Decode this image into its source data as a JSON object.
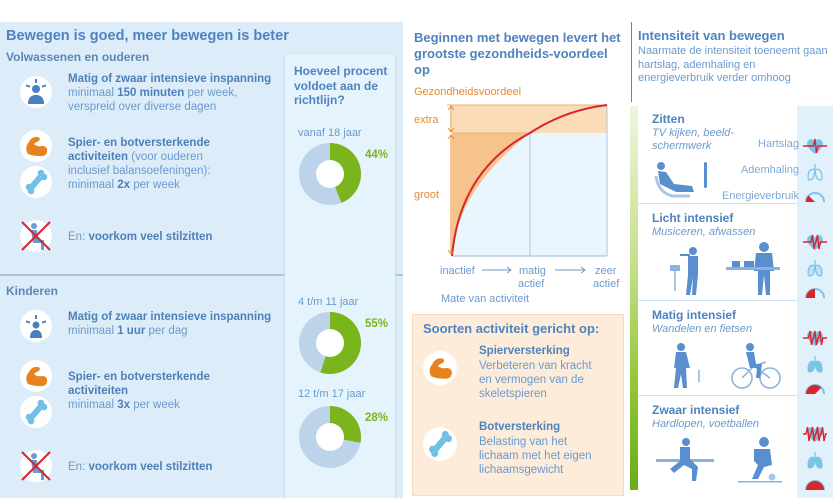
{
  "left": {
    "title": "Bewegen is goed, meer bewegen is beter",
    "adults": {
      "label": "Volwassenen en ouderen",
      "items": [
        {
          "icon": "person-exertion-icon",
          "heading": "Matig of zwaar intensieve inspanning",
          "line1_pre": "minimaal ",
          "line1_bold": "150 minuten",
          "line1_post": " per week,",
          "line2": "verspreid over diverse dagen"
        },
        {
          "icon": "muscle-arm-icon",
          "heading": "Spier- en botversterkende",
          "line1_bold": "activiteiten",
          "line1_post": " (voor ouderen",
          "line2": "inclusief balansoefeningen):",
          "line3_pre": "minimaal ",
          "line3_bold": "2x",
          "line3_post": " per week"
        },
        {
          "icon": "no-sitting-icon",
          "pre": "En: ",
          "bold": "voorkom veel stilzitten"
        }
      ]
    },
    "children": {
      "label": "Kinderen",
      "items": [
        {
          "icon": "person-exertion-icon",
          "heading": "Matig of zwaar intensieve inspanning",
          "line1_pre": "minimaal ",
          "line1_bold": "1 uur",
          "line1_post": " per dag"
        },
        {
          "icon": "muscle-arm-icon",
          "heading": "Spier- en botversterkende",
          "heading2": "activiteiten",
          "line1_pre": "minimaal ",
          "line1_bold": "3x",
          "line1_post": " per week"
        },
        {
          "icon": "no-sitting-icon",
          "pre": "En: ",
          "bold": "voorkom veel stilzitten"
        }
      ]
    }
  },
  "pies": {
    "question": "Hoeveel procent voldoet aan de richtlijn?",
    "items": [
      {
        "label": "vanaf 18 jaar",
        "value": 44,
        "pct_label": "44%"
      },
      {
        "label": "4 t/m 11 jaar",
        "value": 55,
        "pct_label": "55%"
      },
      {
        "label": "12 t/m 17 jaar",
        "value": 28,
        "pct_label": "28%"
      }
    ],
    "colors": {
      "fill": "#7ab51d",
      "rest": "#bcd3ea"
    }
  },
  "middle": {
    "title": "Beginnen met bewegen levert het grootste gezondheids-voordeel op",
    "curve": {
      "ylabel": "Gezondheidsvoordeel",
      "bands": [
        "extra",
        "groot"
      ],
      "xticks": [
        [
          "inactief"
        ],
        [
          "matig",
          "actief"
        ],
        [
          "zeer",
          "actief"
        ]
      ],
      "xlabel": "Mate van activiteit"
    },
    "soorten": {
      "title": "Soorten activiteit gericht op:",
      "items": [
        {
          "icon": "muscle-arm-icon",
          "title": "Spierversterking",
          "desc": [
            "Verbeteren van kracht",
            "en vermogen van de",
            "skeletspieren"
          ]
        },
        {
          "icon": "bone-icon",
          "title": "Botversterking",
          "desc": [
            "Belasting van het",
            "lichaam met het eigen",
            "lichaamsgewicht"
          ]
        }
      ]
    }
  },
  "right": {
    "title": "Intensiteit van bewegen",
    "desc": "Naarmate de intensiteit toeneemt gaan hartslag, ademhaling en energieverbruik verder omhoog",
    "measures": [
      "Hartslag",
      "Ademhaling",
      "Energieverbruik"
    ],
    "levels": [
      {
        "title": "Zitten",
        "sub": "TV kijken, beeld-schermwerk",
        "level": 1
      },
      {
        "title": "Licht intensief",
        "sub": "Musiceren, afwassen",
        "level": 2
      },
      {
        "title": "Matig intensief",
        "sub": "Wandelen en fietsen",
        "level": 3
      },
      {
        "title": "Zwaar intensief",
        "sub": "Hardlopen, voetballen",
        "level": 4
      }
    ]
  },
  "colors": {
    "blue_text": "#4f83bf",
    "orange": "#e88a2a",
    "green": "#7ab51d",
    "red": "#d8262f",
    "panel_blue": "#dcedf9",
    "panel_orange": "#fdecd9"
  }
}
